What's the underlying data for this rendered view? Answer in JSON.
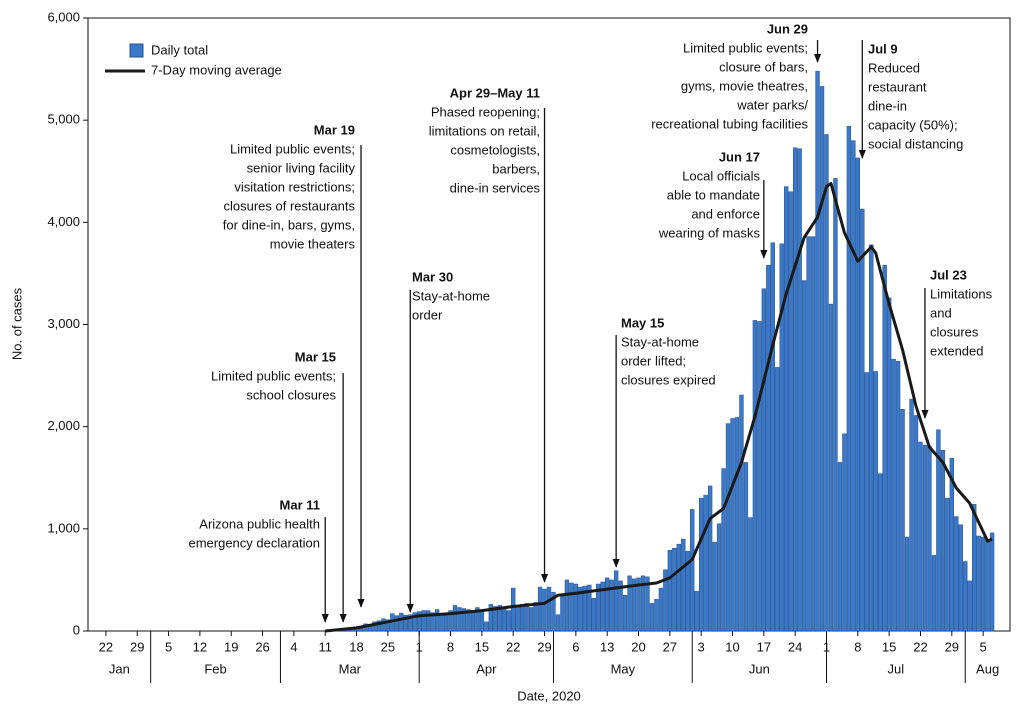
{
  "chart_data": {
    "type": "bar_line",
    "ylabel": "No. of cases",
    "xlabel": "Date, 2020",
    "ylim": [
      0,
      6000
    ],
    "yticks": [
      0,
      {
        "value": 1000,
        "label": "1,000"
      },
      {
        "value": 2000,
        "label": "2,000"
      },
      {
        "value": 3000,
        "label": "3,000"
      },
      {
        "value": 4000,
        "label": "4,000"
      },
      {
        "value": 5000,
        "label": "5,000"
      },
      {
        "value": 6000,
        "label": "6,000"
      }
    ],
    "xlim": [
      "2020-01-18",
      "2020-08-11"
    ],
    "xticks": [
      {
        "value": "2020-01-22",
        "label": "22"
      },
      {
        "value": "2020-01-29",
        "label": "29"
      },
      {
        "value": "2020-02-05",
        "label": "5"
      },
      {
        "value": "2020-02-12",
        "label": "12"
      },
      {
        "value": "2020-02-19",
        "label": "19"
      },
      {
        "value": "2020-02-26",
        "label": "26"
      },
      {
        "value": "2020-03-04",
        "label": "4"
      },
      {
        "value": "2020-03-11",
        "label": "11"
      },
      {
        "value": "2020-03-18",
        "label": "18"
      },
      {
        "value": "2020-03-25",
        "label": "25"
      },
      {
        "value": "2020-04-01",
        "label": "1"
      },
      {
        "value": "2020-04-08",
        "label": "8"
      },
      {
        "value": "2020-04-15",
        "label": "15"
      },
      {
        "value": "2020-04-22",
        "label": "22"
      },
      {
        "value": "2020-04-29",
        "label": "29"
      },
      {
        "value": "2020-05-06",
        "label": "6"
      },
      {
        "value": "2020-05-13",
        "label": "13"
      },
      {
        "value": "2020-05-20",
        "label": "20"
      },
      {
        "value": "2020-05-27",
        "label": "27"
      },
      {
        "value": "2020-06-03",
        "label": "3"
      },
      {
        "value": "2020-06-10",
        "label": "10"
      },
      {
        "value": "2020-06-17",
        "label": "17"
      },
      {
        "value": "2020-06-24",
        "label": "24"
      },
      {
        "value": "2020-07-01",
        "label": "1"
      },
      {
        "value": "2020-07-08",
        "label": "8"
      },
      {
        "value": "2020-07-15",
        "label": "15"
      },
      {
        "value": "2020-07-22",
        "label": "22"
      },
      {
        "value": "2020-07-29",
        "label": "29"
      },
      {
        "value": "2020-08-05",
        "label": "5"
      }
    ],
    "x_months": [
      {
        "value": "2020-01",
        "label": "Jan"
      },
      {
        "value": "2020-02",
        "label": "Feb"
      },
      {
        "value": "2020-03",
        "label": "Mar"
      },
      {
        "value": "2020-04",
        "label": "Apr"
      },
      {
        "value": "2020-05",
        "label": "May"
      },
      {
        "value": "2020-06",
        "label": "Jun"
      },
      {
        "value": "2020-07",
        "label": "Jul"
      },
      {
        "value": "2020-08",
        "label": "Aug"
      }
    ],
    "legend": "upper left",
    "series": [
      {
        "name": "Daily total",
        "type": "bar",
        "color": "#3b78c8",
        "x": [
          "2020-03-11",
          "2020-03-12",
          "2020-03-13",
          "2020-03-14",
          "2020-03-15",
          "2020-03-16",
          "2020-03-17",
          "2020-03-18",
          "2020-03-19",
          "2020-03-20",
          "2020-03-21",
          "2020-03-22",
          "2020-03-23",
          "2020-03-24",
          "2020-03-25",
          "2020-03-26",
          "2020-03-27",
          "2020-03-28",
          "2020-03-29",
          "2020-03-30",
          "2020-03-31",
          "2020-04-01",
          "2020-04-02",
          "2020-04-03",
          "2020-04-04",
          "2020-04-05",
          "2020-04-06",
          "2020-04-07",
          "2020-04-08",
          "2020-04-09",
          "2020-04-10",
          "2020-04-11",
          "2020-04-12",
          "2020-04-13",
          "2020-04-14",
          "2020-04-15",
          "2020-04-16",
          "2020-04-17",
          "2020-04-18",
          "2020-04-19",
          "2020-04-20",
          "2020-04-21",
          "2020-04-22",
          "2020-04-23",
          "2020-04-24",
          "2020-04-25",
          "2020-04-26",
          "2020-04-27",
          "2020-04-28",
          "2020-04-29",
          "2020-04-30",
          "2020-05-01",
          "2020-05-02",
          "2020-05-03",
          "2020-05-04",
          "2020-05-05",
          "2020-05-06",
          "2020-05-07",
          "2020-05-08",
          "2020-05-09",
          "2020-05-10",
          "2020-05-11",
          "2020-05-12",
          "2020-05-13",
          "2020-05-14",
          "2020-05-15",
          "2020-05-16",
          "2020-05-17",
          "2020-05-18",
          "2020-05-19",
          "2020-05-20",
          "2020-05-21",
          "2020-05-22",
          "2020-05-23",
          "2020-05-24",
          "2020-05-25",
          "2020-05-26",
          "2020-05-27",
          "2020-05-28",
          "2020-05-29",
          "2020-05-30",
          "2020-05-31",
          "2020-06-01",
          "2020-06-02",
          "2020-06-03",
          "2020-06-04",
          "2020-06-05",
          "2020-06-06",
          "2020-06-07",
          "2020-06-08",
          "2020-06-09",
          "2020-06-10",
          "2020-06-11",
          "2020-06-12",
          "2020-06-13",
          "2020-06-14",
          "2020-06-15",
          "2020-06-16",
          "2020-06-17",
          "2020-06-18",
          "2020-06-19",
          "2020-06-20",
          "2020-06-21",
          "2020-06-22",
          "2020-06-23",
          "2020-06-24",
          "2020-06-25",
          "2020-06-26",
          "2020-06-27",
          "2020-06-28",
          "2020-06-29",
          "2020-06-30",
          "2020-07-01",
          "2020-07-02",
          "2020-07-03",
          "2020-07-04",
          "2020-07-05",
          "2020-07-06",
          "2020-07-07",
          "2020-07-08",
          "2020-07-09",
          "2020-07-10",
          "2020-07-11",
          "2020-07-12",
          "2020-07-13",
          "2020-07-14",
          "2020-07-15",
          "2020-07-16",
          "2020-07-17",
          "2020-07-18",
          "2020-07-19",
          "2020-07-20",
          "2020-07-21",
          "2020-07-22",
          "2020-07-23",
          "2020-07-24",
          "2020-07-25",
          "2020-07-26",
          "2020-07-27",
          "2020-07-28",
          "2020-07-29",
          "2020-07-30",
          "2020-07-31",
          "2020-08-01",
          "2020-08-02",
          "2020-08-03",
          "2020-08-04",
          "2020-08-05",
          "2020-08-06",
          "2020-08-07"
        ],
        "values": [
          0,
          0,
          5,
          5,
          10,
          15,
          20,
          30,
          45,
          70,
          60,
          90,
          100,
          120,
          110,
          170,
          150,
          175,
          155,
          160,
          180,
          190,
          200,
          200,
          180,
          210,
          160,
          150,
          200,
          250,
          230,
          220,
          210,
          180,
          230,
          210,
          90,
          260,
          240,
          250,
          230,
          200,
          420,
          250,
          260,
          270,
          230,
          280,
          430,
          410,
          430,
          380,
          160,
          340,
          500,
          470,
          460,
          430,
          440,
          450,
          320,
          460,
          480,
          520,
          500,
          590,
          490,
          350,
          540,
          510,
          520,
          540,
          530,
          270,
          310,
          420,
          600,
          790,
          810,
          850,
          900,
          780,
          1190,
          390,
          1300,
          1330,
          1420,
          870,
          1050,
          1590,
          2030,
          2080,
          2090,
          2310,
          1650,
          1110,
          3040,
          3030,
          3350,
          3580,
          3800,
          2580,
          3790,
          4350,
          4300,
          4730,
          4720,
          3430,
          3860,
          3860,
          5480,
          5330,
          4860,
          3200,
          4430,
          1650,
          1930,
          4940,
          4800,
          4630,
          4130,
          2530,
          3780,
          2540,
          1540,
          3580,
          3260,
          2660,
          2640,
          2170,
          920,
          2270,
          2110,
          1850,
          1820,
          1810,
          740,
          1970,
          1770,
          1300,
          1690,
          1120,
          1040,
          680,
          490,
          1240,
          930,
          920,
          890,
          960
        ]
      },
      {
        "name": "7-Day moving average",
        "type": "line",
        "color": "#1a1a1a",
        "x": [
          "2020-03-11",
          "2020-03-18",
          "2020-03-25",
          "2020-04-01",
          "2020-04-08",
          "2020-04-15",
          "2020-04-22",
          "2020-04-29",
          "2020-05-02",
          "2020-05-06",
          "2020-05-13",
          "2020-05-20",
          "2020-05-24",
          "2020-05-27",
          "2020-06-01",
          "2020-06-05",
          "2020-06-08",
          "2020-06-12",
          "2020-06-15",
          "2020-06-19",
          "2020-06-22",
          "2020-06-26",
          "2020-06-29",
          "2020-07-01",
          "2020-07-02",
          "2020-07-05",
          "2020-07-08",
          "2020-07-11",
          "2020-07-12",
          "2020-07-15",
          "2020-07-18",
          "2020-07-21",
          "2020-07-24",
          "2020-07-27",
          "2020-07-30",
          "2020-08-02",
          "2020-08-06",
          "2020-08-07"
        ],
        "values": [
          0,
          30,
          90,
          150,
          170,
          200,
          240,
          270,
          350,
          370,
          410,
          450,
          470,
          520,
          700,
          1100,
          1200,
          1650,
          2100,
          2800,
          3300,
          3850,
          4050,
          4350,
          4380,
          3900,
          3620,
          3760,
          3700,
          3200,
          2750,
          2200,
          1800,
          1650,
          1400,
          1250,
          880,
          900
        ]
      }
    ],
    "annotations": [
      {
        "label": "Mar 11",
        "x": "2020-03-11",
        "text": [
          "Arizona public health",
          "emergency declaration"
        ]
      },
      {
        "label": "Mar 15",
        "x": "2020-03-15",
        "text": [
          "Limited public events;",
          "school closures"
        ]
      },
      {
        "label": "Mar 19",
        "x": "2020-03-19",
        "text": [
          "Limited public events;",
          "senior living facility",
          "visitation restrictions;",
          "closures of restaurants",
          "for dine-in, bars, gyms,",
          "movie theaters"
        ]
      },
      {
        "label": "Mar 30",
        "x": "2020-03-30",
        "text": [
          "Stay-at-home",
          "order"
        ]
      },
      {
        "label": "Apr 29–May 11",
        "x": "2020-04-29",
        "text": [
          "Phased reopening;",
          "limitations on retail,",
          "cosmetologists,",
          "barbers,",
          "dine-in services"
        ]
      },
      {
        "label": "May 15",
        "x": "2020-05-15",
        "text": [
          "Stay-at-home",
          "order lifted;",
          "closures expired"
        ]
      },
      {
        "label": "Jun 17",
        "x": "2020-06-17",
        "text": [
          "Local officials",
          "able to mandate",
          "and enforce",
          "wearing of masks"
        ]
      },
      {
        "label": "Jun 29",
        "x": "2020-06-29",
        "text": [
          "Limited public events;",
          "closure of bars,",
          "gyms, movie theatres,",
          "water parks/",
          "recreational tubing facilities"
        ]
      },
      {
        "label": "Jul 9",
        "x": "2020-07-09",
        "text": [
          "Reduced",
          "restaurant",
          "dine-in",
          "capacity (50%);",
          "social distancing"
        ]
      },
      {
        "label": "Jul 23",
        "x": "2020-07-23",
        "text": [
          "Limitations",
          "and",
          "closures",
          "extended"
        ]
      }
    ]
  }
}
